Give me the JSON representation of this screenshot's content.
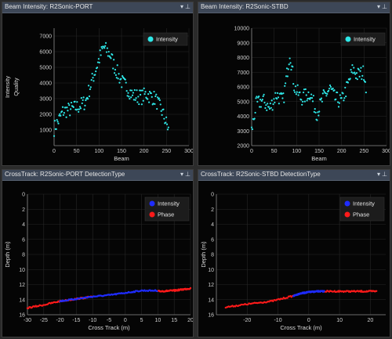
{
  "panels": [
    {
      "title": "Beam Intensity: R2Sonic-PORT"
    },
    {
      "title": "Beam Intensity: R2Sonic-STBD"
    },
    {
      "title": "CrossTrack: R2Sonic-PORT DetectionType"
    },
    {
      "title": "CrossTrack: R2Sonic-STBD DetectionType"
    }
  ],
  "colors": {
    "intensity_pt": "#2ee8e8",
    "detect_intensity": "#1f2cff",
    "detect_phase": "#ff1a1a",
    "titlebar": "#3d4757"
  },
  "icons": {
    "dropdown": "chevron-down-icon",
    "pin": "pin-icon"
  },
  "chart_data": [
    {
      "type": "scatter",
      "xlabel": "Beam",
      "ylabel": "Intensity",
      "ylabel2": "Quality",
      "xlim": [
        0,
        300
      ],
      "ylim": [
        0,
        7500
      ],
      "xticks": [
        0,
        50,
        100,
        150,
        200,
        250,
        300
      ],
      "yticks": [
        1000,
        2000,
        3000,
        4000,
        5000,
        6000,
        7000
      ],
      "legend": "top-right",
      "series": [
        {
          "name": "Intensity",
          "anchors": [
            [
              0,
              1100
            ],
            [
              10,
              1600
            ],
            [
              20,
              2200
            ],
            [
              35,
              2300
            ],
            [
              55,
              2500
            ],
            [
              70,
              2800
            ],
            [
              85,
              4200
            ],
            [
              100,
              5500
            ],
            [
              110,
              6300
            ],
            [
              125,
              5800
            ],
            [
              135,
              5000
            ],
            [
              150,
              4100
            ],
            [
              165,
              3600
            ],
            [
              175,
              3200
            ],
            [
              195,
              3100
            ],
            [
              205,
              3300
            ],
            [
              225,
              3000
            ],
            [
              240,
              2200
            ],
            [
              255,
              1000
            ]
          ]
        }
      ]
    },
    {
      "type": "scatter",
      "xlabel": "Beam",
      "xlim": [
        0,
        300
      ],
      "ylim": [
        2000,
        10000
      ],
      "xticks": [
        0,
        50,
        100,
        150,
        200,
        250,
        300
      ],
      "yticks": [
        2000,
        3000,
        4000,
        5000,
        6000,
        7000,
        8000,
        9000,
        10000
      ],
      "legend": "top-right",
      "series": [
        {
          "name": "Intensity",
          "anchors": [
            [
              0,
              3000
            ],
            [
              10,
              4800
            ],
            [
              25,
              5100
            ],
            [
              40,
              4500
            ],
            [
              55,
              5500
            ],
            [
              70,
              5000
            ],
            [
              80,
              7200
            ],
            [
              85,
              8400
            ],
            [
              95,
              6000
            ],
            [
              110,
              5200
            ],
            [
              130,
              5600
            ],
            [
              145,
              4200
            ],
            [
              160,
              5300
            ],
            [
              175,
              5900
            ],
            [
              185,
              5200
            ],
            [
              200,
              5000
            ],
            [
              215,
              6200
            ],
            [
              225,
              7200
            ],
            [
              235,
              6800
            ],
            [
              250,
              7000
            ],
            [
              260,
              5000
            ]
          ]
        }
      ]
    },
    {
      "type": "scatter",
      "xlabel": "Cross Track (m)",
      "ylabel": "Depth (m)",
      "xlim": [
        -30,
        20
      ],
      "ylim": [
        0,
        16
      ],
      "xticks": [
        -30,
        -25,
        -20,
        -15,
        -10,
        -5,
        0,
        5,
        10,
        15,
        20
      ],
      "yticks": [
        0,
        2,
        4,
        6,
        8,
        10,
        12,
        14,
        16
      ],
      "legend": "top-right",
      "series": [
        {
          "name": "Intensity",
          "anchors": [
            [
              -20,
              14.2
            ],
            [
              -15,
              13.9
            ],
            [
              -10,
              13.6
            ],
            [
              -5,
              13.4
            ],
            [
              0,
              13.1
            ],
            [
              5,
              12.8
            ],
            [
              10,
              12.8
            ]
          ]
        },
        {
          "name": "Phase",
          "anchors": [
            [
              -30,
              15.1
            ],
            [
              -25,
              14.7
            ],
            [
              -20,
              14.2
            ],
            [
              -15,
              13.9
            ],
            [
              -10,
              13.6
            ]
          ],
          "anchors2": [
            [
              10,
              12.9
            ],
            [
              15,
              12.8
            ],
            [
              20,
              12.5
            ]
          ]
        }
      ]
    },
    {
      "type": "scatter",
      "xlabel": "Cross Track (m)",
      "ylabel": "Depth (m)",
      "xlim": [
        -30,
        25
      ],
      "ylim": [
        0,
        16
      ],
      "xticks": [
        -20,
        -10,
        0,
        10,
        20
      ],
      "yticks": [
        0,
        2,
        4,
        6,
        8,
        10,
        12,
        14,
        16
      ],
      "legend": "top-right",
      "series": [
        {
          "name": "Intensity",
          "anchors": [
            [
              -5,
              13.5
            ],
            [
              -3,
              13.2
            ],
            [
              0,
              13.0
            ],
            [
              3,
              12.9
            ],
            [
              5,
              12.9
            ]
          ]
        },
        {
          "name": "Phase",
          "anchors": [
            [
              -27,
              15.0
            ],
            [
              -20,
              14.6
            ],
            [
              -12,
              14.2
            ],
            [
              -7,
              13.7
            ],
            [
              -5,
              13.5
            ]
          ],
          "anchors2": [
            [
              5,
              12.9
            ],
            [
              10,
              12.9
            ],
            [
              15,
              12.9
            ],
            [
              22,
              12.9
            ]
          ]
        }
      ]
    }
  ]
}
